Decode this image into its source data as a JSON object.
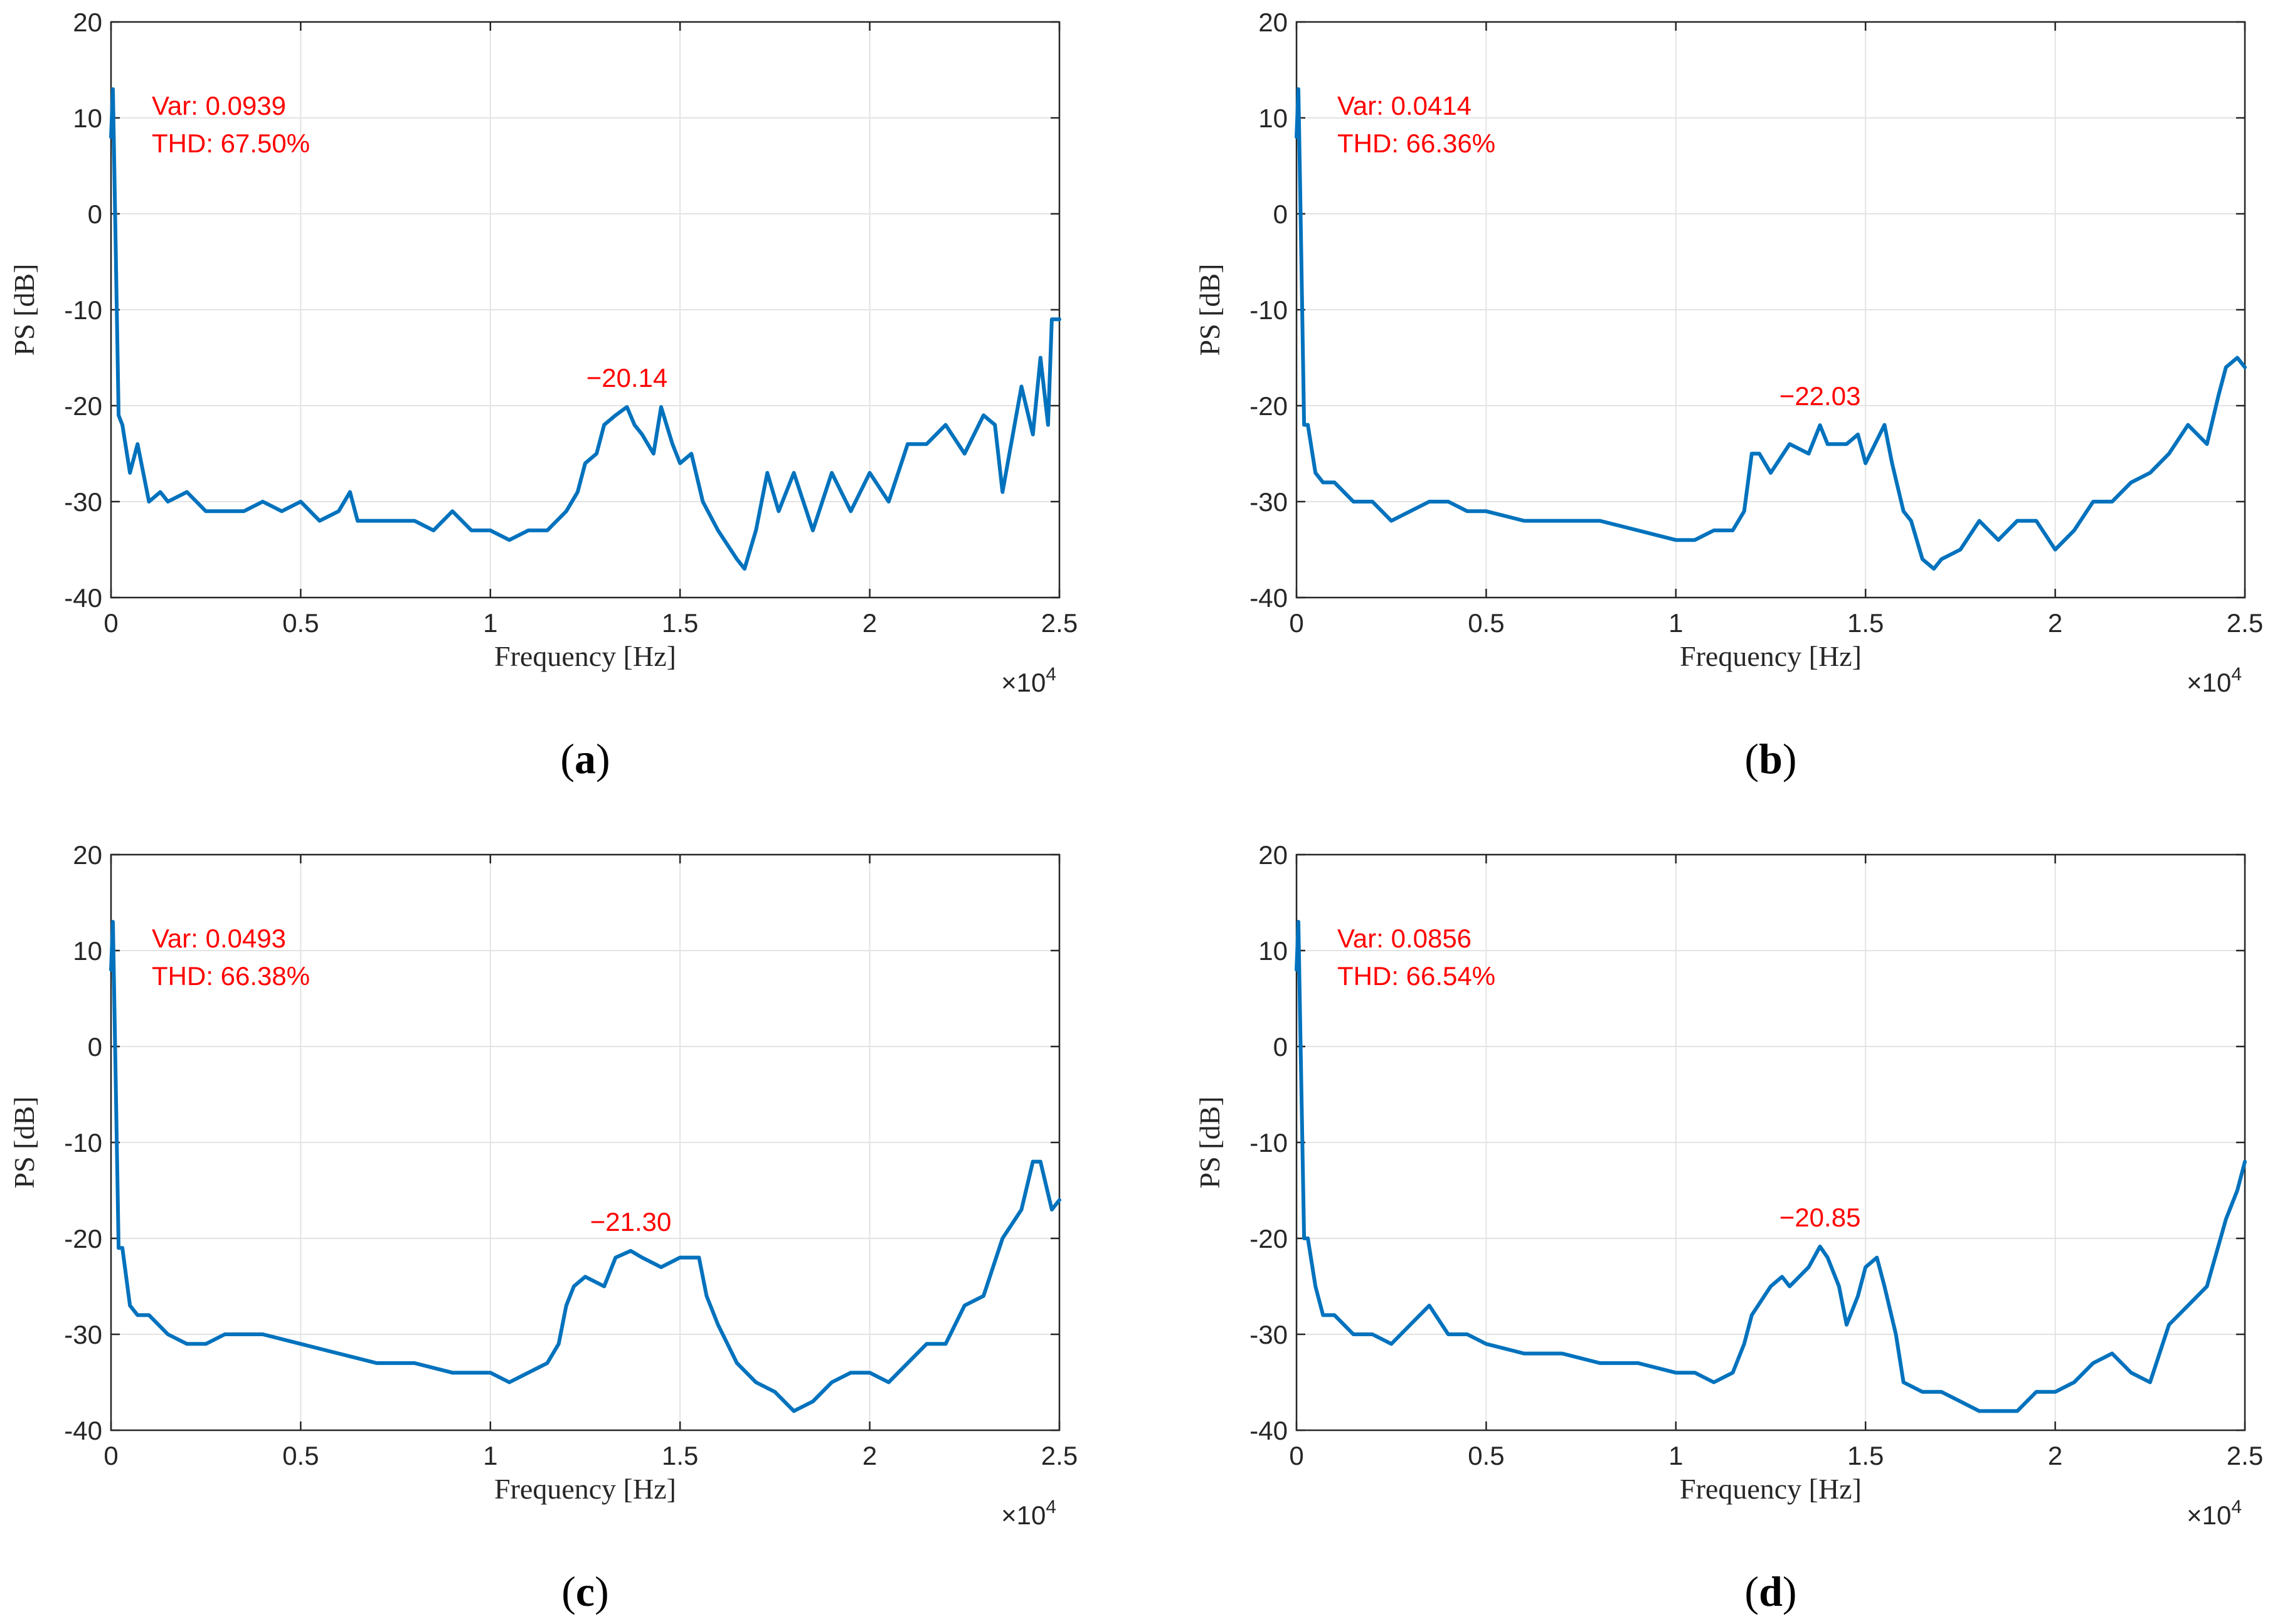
{
  "colors": {
    "series": "#0072bd",
    "annotation": "#ff0000",
    "axis": "#262626",
    "grid": "#e3e3e3"
  },
  "chart_data": [
    {
      "panel": "(a)",
      "caption": {
        "open": "(",
        "letter": "a",
        "close": ")"
      },
      "type": "line",
      "xlabel": "Frequency [Hz]",
      "ylabel": "PS [dB]",
      "x_multiplier": "×10",
      "x_multiplier_exp": "4",
      "xlim": [
        0,
        2.5
      ],
      "ylim": [
        -40,
        20
      ],
      "xticks": [
        "0",
        "0.5",
        "1",
        "1.5",
        "2",
        "2.5"
      ],
      "yticks": [
        "-40",
        "-30",
        "-20",
        "-10",
        "0",
        "10",
        "20"
      ],
      "grid": true,
      "var_text": "Var: 0.0939",
      "thd_text": "THD: 67.50%",
      "peak_label": "−20.14",
      "peak": {
        "x": 1.36,
        "y": -20.14
      },
      "series": [
        {
          "name": "PS",
          "x": [
            0,
            0.005,
            0.01,
            0.02,
            0.03,
            0.05,
            0.07,
            0.1,
            0.13,
            0.15,
            0.2,
            0.25,
            0.3,
            0.35,
            0.4,
            0.45,
            0.5,
            0.55,
            0.6,
            0.63,
            0.65,
            0.7,
            0.75,
            0.8,
            0.85,
            0.9,
            0.95,
            1.0,
            1.05,
            1.1,
            1.15,
            1.2,
            1.23,
            1.25,
            1.28,
            1.3,
            1.33,
            1.36,
            1.38,
            1.4,
            1.43,
            1.45,
            1.48,
            1.5,
            1.53,
            1.56,
            1.6,
            1.65,
            1.67,
            1.7,
            1.73,
            1.76,
            1.8,
            1.85,
            1.9,
            1.95,
            2.0,
            2.05,
            2.1,
            2.15,
            2.2,
            2.25,
            2.3,
            2.33,
            2.35,
            2.4,
            2.43,
            2.45,
            2.47,
            2.48,
            2.5
          ],
          "y": [
            8,
            13,
            2,
            -21,
            -22,
            -27,
            -24,
            -30,
            -29,
            -30,
            -29,
            -31,
            -31,
            -31,
            -30,
            -31,
            -30,
            -32,
            -31,
            -29,
            -32,
            -32,
            -32,
            -32,
            -33,
            -31,
            -33,
            -33,
            -34,
            -33,
            -33,
            -31,
            -29,
            -26,
            -25,
            -22,
            -21,
            -20.14,
            -22,
            -23,
            -25,
            -20.14,
            -24,
            -26,
            -25,
            -30,
            -33,
            -36,
            -37,
            -33,
            -27,
            -31,
            -27,
            -33,
            -27,
            -31,
            -27,
            -30,
            -24,
            -24,
            -22,
            -25,
            -21,
            -22,
            -29,
            -18,
            -23,
            -15,
            -22,
            -11,
            -11
          ]
        }
      ]
    },
    {
      "panel": "(b)",
      "caption": {
        "open": "(",
        "letter": "b",
        "close": ")"
      },
      "type": "line",
      "xlabel": "Frequency [Hz]",
      "ylabel": "PS [dB]",
      "x_multiplier": "×10",
      "x_multiplier_exp": "4",
      "xlim": [
        0,
        2.5
      ],
      "ylim": [
        -40,
        20
      ],
      "xticks": [
        "0",
        "0.5",
        "1",
        "1.5",
        "2",
        "2.5"
      ],
      "yticks": [
        "-40",
        "-30",
        "-20",
        "-10",
        "0",
        "10",
        "20"
      ],
      "grid": true,
      "var_text": "Var: 0.0414",
      "thd_text": "THD: 66.36%",
      "peak_label": "−22.03",
      "peak": {
        "x": 1.38,
        "y": -22.03
      },
      "series": [
        {
          "name": "PS",
          "x": [
            0,
            0.005,
            0.01,
            0.02,
            0.03,
            0.05,
            0.07,
            0.1,
            0.15,
            0.2,
            0.25,
            0.3,
            0.35,
            0.4,
            0.45,
            0.5,
            0.6,
            0.7,
            0.8,
            0.9,
            1.0,
            1.05,
            1.1,
            1.15,
            1.18,
            1.2,
            1.22,
            1.25,
            1.3,
            1.35,
            1.38,
            1.4,
            1.45,
            1.48,
            1.5,
            1.55,
            1.57,
            1.6,
            1.62,
            1.65,
            1.68,
            1.7,
            1.75,
            1.8,
            1.85,
            1.9,
            1.95,
            2.0,
            2.05,
            2.1,
            2.15,
            2.2,
            2.25,
            2.3,
            2.35,
            2.4,
            2.43,
            2.45,
            2.48,
            2.5
          ],
          "y": [
            8,
            13,
            2,
            -22,
            -22,
            -27,
            -28,
            -28,
            -30,
            -30,
            -32,
            -31,
            -30,
            -30,
            -31,
            -31,
            -32,
            -32,
            -32,
            -33,
            -34,
            -34,
            -33,
            -33,
            -31,
            -25,
            -25,
            -27,
            -24,
            -25,
            -22.03,
            -24,
            -24,
            -23,
            -26,
            -22,
            -26,
            -31,
            -32,
            -36,
            -37,
            -36,
            -35,
            -32,
            -34,
            -32,
            -32,
            -35,
            -33,
            -30,
            -30,
            -28,
            -27,
            -25,
            -22,
            -24,
            -19,
            -16,
            -15,
            -16
          ]
        }
      ]
    },
    {
      "panel": "(c)",
      "caption": {
        "open": "(",
        "letter": "c",
        "close": ")"
      },
      "type": "line",
      "xlabel": "Frequency [Hz]",
      "ylabel": "PS [dB]",
      "x_multiplier": "×10",
      "x_multiplier_exp": "4",
      "xlim": [
        0,
        2.5
      ],
      "ylim": [
        -40,
        20
      ],
      "xticks": [
        "0",
        "0.5",
        "1",
        "1.5",
        "2",
        "2.5"
      ],
      "yticks": [
        "-40",
        "-30",
        "-20",
        "-10",
        "0",
        "10",
        "20"
      ],
      "grid": true,
      "var_text": "Var: 0.0493",
      "thd_text": "THD: 66.38%",
      "peak_label": "−21.30",
      "peak": {
        "x": 1.37,
        "y": -21.3
      },
      "series": [
        {
          "name": "PS",
          "x": [
            0,
            0.005,
            0.01,
            0.02,
            0.03,
            0.05,
            0.07,
            0.1,
            0.15,
            0.2,
            0.25,
            0.3,
            0.35,
            0.4,
            0.5,
            0.6,
            0.7,
            0.8,
            0.9,
            1.0,
            1.05,
            1.1,
            1.15,
            1.18,
            1.2,
            1.22,
            1.25,
            1.3,
            1.33,
            1.37,
            1.4,
            1.45,
            1.5,
            1.55,
            1.57,
            1.6,
            1.65,
            1.7,
            1.75,
            1.8,
            1.85,
            1.9,
            1.95,
            2.0,
            2.05,
            2.1,
            2.15,
            2.2,
            2.25,
            2.3,
            2.35,
            2.4,
            2.43,
            2.45,
            2.48,
            2.5
          ],
          "y": [
            8,
            13,
            2,
            -21,
            -21,
            -27,
            -28,
            -28,
            -30,
            -31,
            -31,
            -30,
            -30,
            -30,
            -31,
            -32,
            -33,
            -33,
            -34,
            -34,
            -35,
            -34,
            -33,
            -31,
            -27,
            -25,
            -24,
            -25,
            -22,
            -21.3,
            -22,
            -23,
            -22,
            -22,
            -26,
            -29,
            -33,
            -35,
            -36,
            -38,
            -37,
            -35,
            -34,
            -34,
            -35,
            -33,
            -31,
            -31,
            -27,
            -26,
            -20,
            -17,
            -12,
            -12,
            -17,
            -16
          ]
        }
      ]
    },
    {
      "panel": "(d)",
      "caption": {
        "open": "(",
        "letter": "d",
        "close": ")"
      },
      "type": "line",
      "xlabel": "Frequency [Hz]",
      "ylabel": "PS [dB]",
      "x_multiplier": "×10",
      "x_multiplier_exp": "4",
      "xlim": [
        0,
        2.5
      ],
      "ylim": [
        -40,
        20
      ],
      "xticks": [
        "0",
        "0.5",
        "1",
        "1.5",
        "2",
        "2.5"
      ],
      "yticks": [
        "-40",
        "-30",
        "-20",
        "-10",
        "0",
        "10",
        "20"
      ],
      "grid": true,
      "var_text": "Var: 0.0856",
      "thd_text": "THD: 66.54%",
      "peak_label": "−20.85",
      "peak": {
        "x": 1.38,
        "y": -20.85
      },
      "series": [
        {
          "name": "PS",
          "x": [
            0,
            0.005,
            0.01,
            0.02,
            0.03,
            0.05,
            0.07,
            0.1,
            0.15,
            0.2,
            0.25,
            0.3,
            0.35,
            0.4,
            0.45,
            0.5,
            0.6,
            0.7,
            0.8,
            0.9,
            1.0,
            1.05,
            1.1,
            1.15,
            1.18,
            1.2,
            1.25,
            1.28,
            1.3,
            1.35,
            1.38,
            1.4,
            1.43,
            1.45,
            1.48,
            1.5,
            1.53,
            1.55,
            1.58,
            1.6,
            1.65,
            1.7,
            1.75,
            1.8,
            1.85,
            1.9,
            1.95,
            2.0,
            2.05,
            2.1,
            2.15,
            2.2,
            2.25,
            2.3,
            2.35,
            2.4,
            2.45,
            2.48,
            2.5
          ],
          "y": [
            8,
            13,
            2,
            -20,
            -20,
            -25,
            -28,
            -28,
            -30,
            -30,
            -31,
            -29,
            -27,
            -30,
            -30,
            -31,
            -32,
            -32,
            -33,
            -33,
            -34,
            -34,
            -35,
            -34,
            -31,
            -28,
            -25,
            -24,
            -25,
            -23,
            -20.85,
            -22,
            -25,
            -29,
            -26,
            -23,
            -22,
            -25,
            -30,
            -35,
            -36,
            -36,
            -37,
            -38,
            -38,
            -38,
            -36,
            -36,
            -35,
            -33,
            -32,
            -34,
            -35,
            -29,
            -27,
            -25,
            -18,
            -15,
            -12
          ]
        }
      ]
    }
  ]
}
